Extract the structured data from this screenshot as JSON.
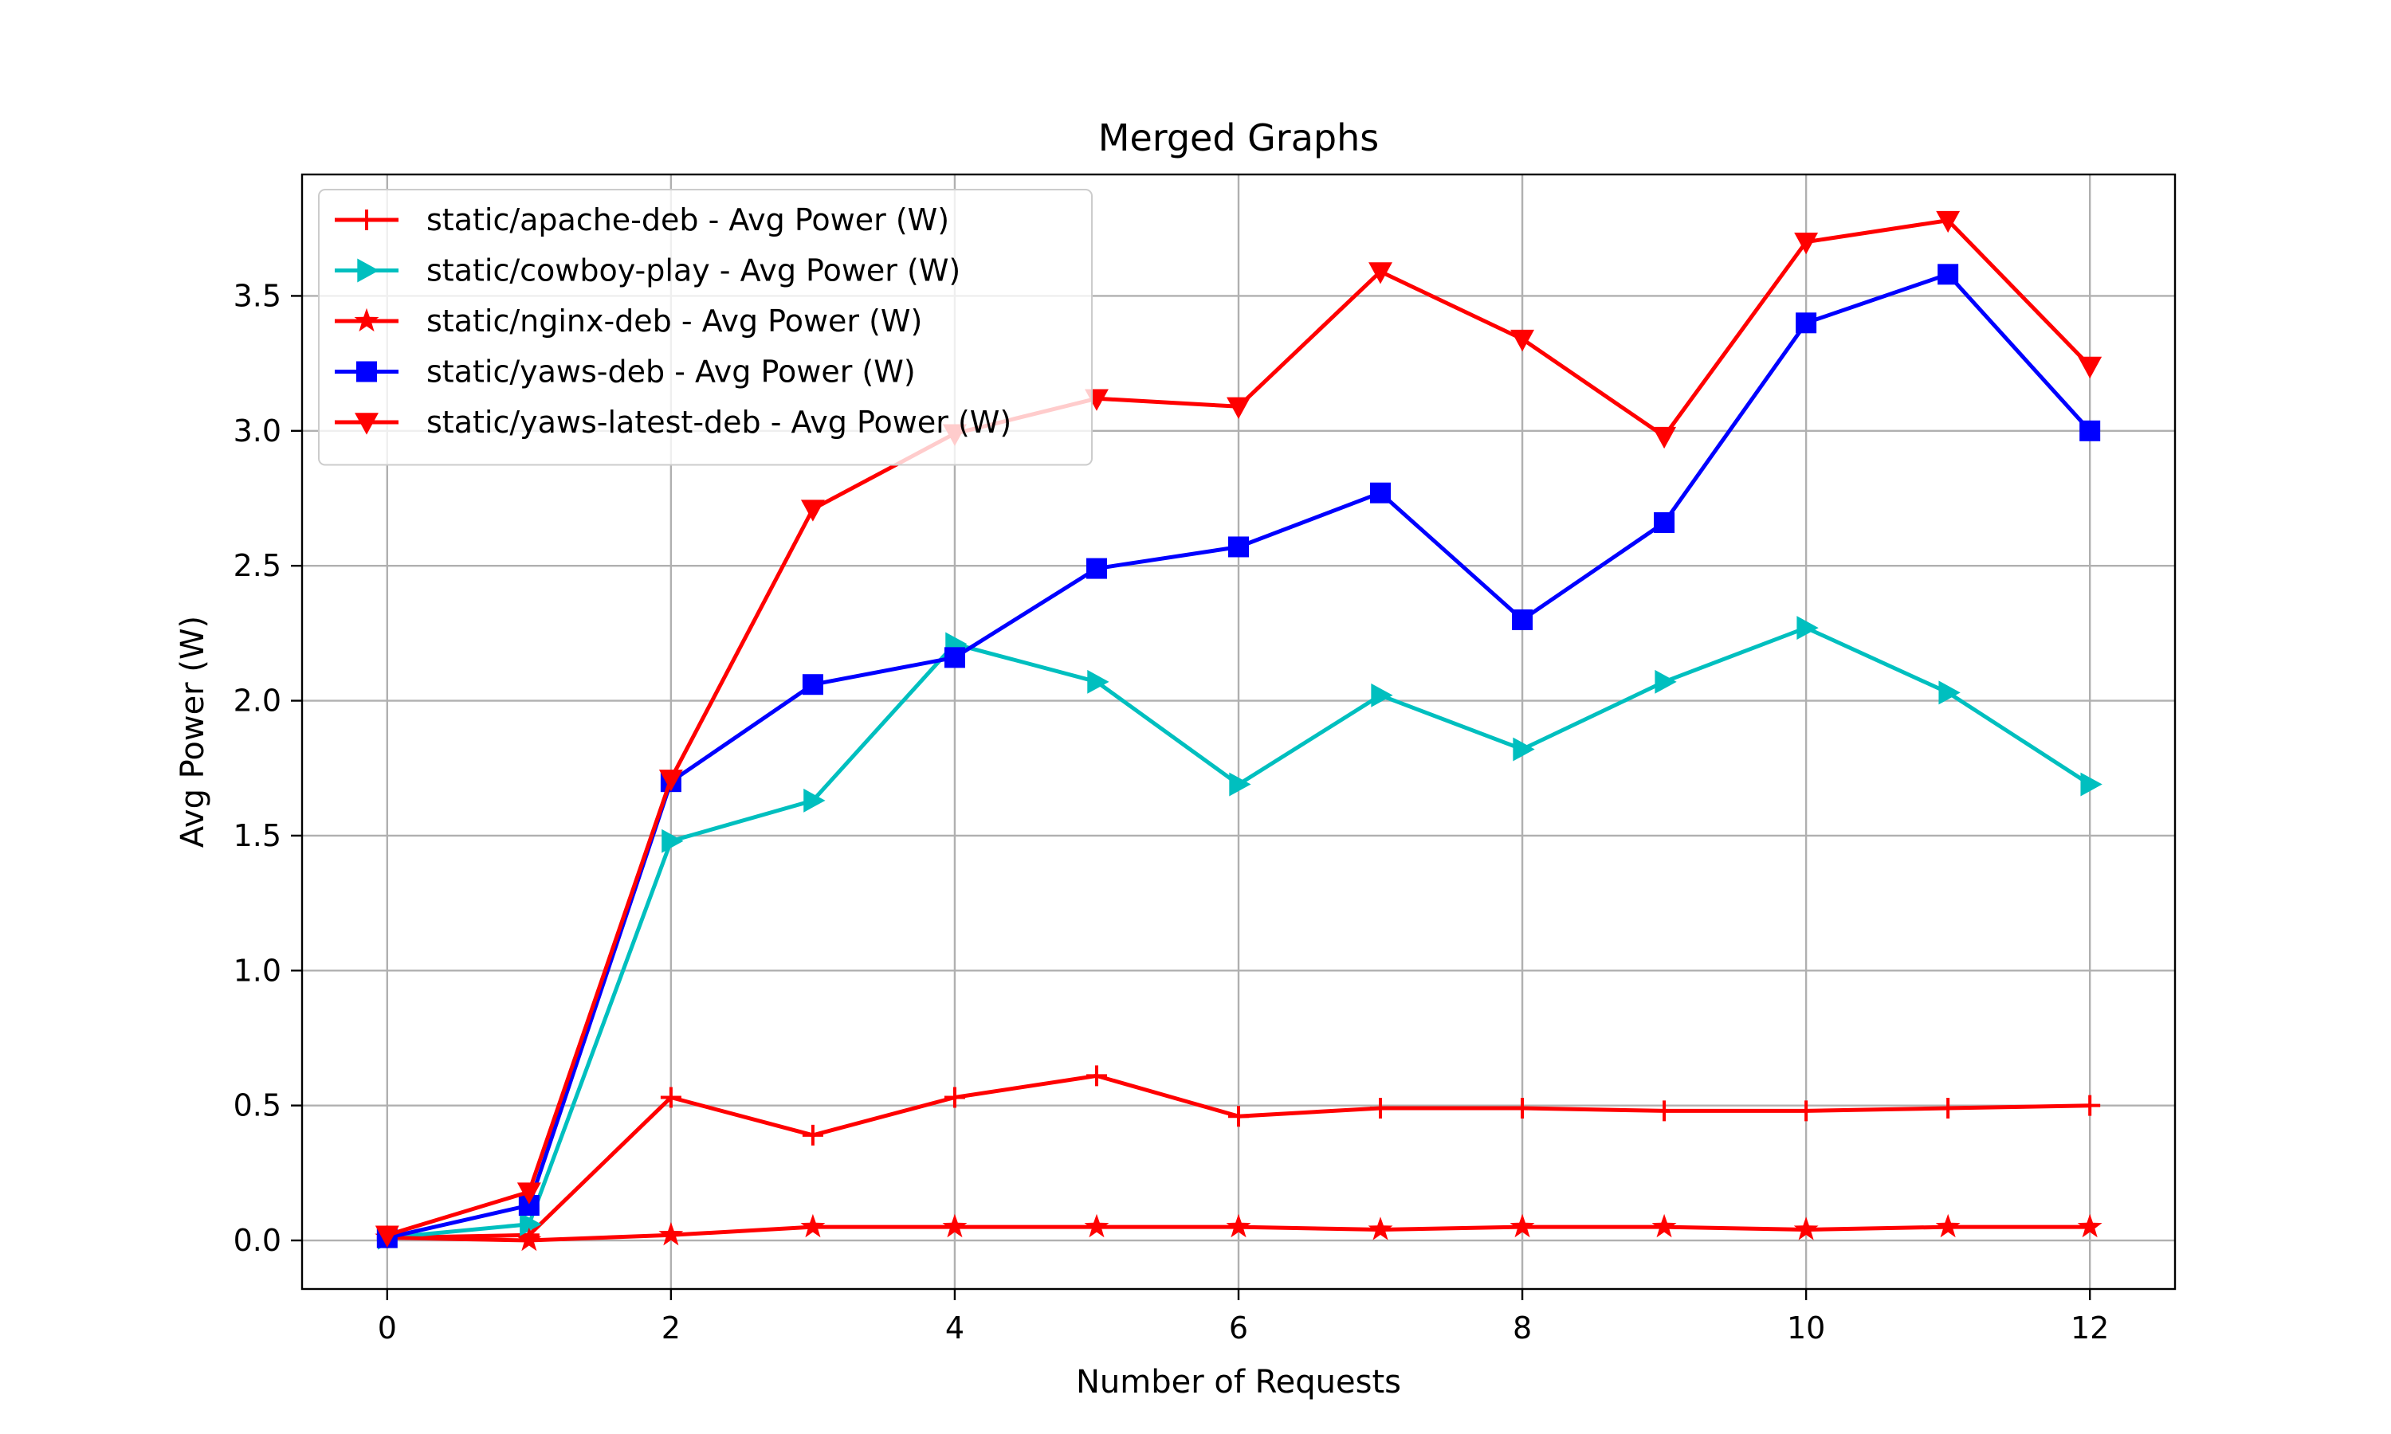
{
  "chart_data": {
    "type": "line",
    "title": "Merged Graphs",
    "xlabel": "Number of Requests",
    "ylabel": "Avg Power (W)",
    "xlim": [
      -0.6,
      12.6
    ],
    "ylim": [
      -0.18,
      3.95
    ],
    "xticks": [
      0,
      2,
      4,
      6,
      8,
      10,
      12
    ],
    "xtick_labels": [
      "0",
      "2",
      "4",
      "6",
      "8",
      "10",
      "12"
    ],
    "yticks": [
      0.0,
      0.5,
      1.0,
      1.5,
      2.0,
      2.5,
      3.0,
      3.5
    ],
    "ytick_labels": [
      "0.0",
      "0.5",
      "1.0",
      "1.5",
      "2.0",
      "2.5",
      "3.0",
      "3.5"
    ],
    "grid": true,
    "legend_position": "top-left",
    "x": [
      0,
      1,
      2,
      3,
      4,
      5,
      6,
      7,
      8,
      9,
      10,
      11,
      12
    ],
    "series": [
      {
        "name": "static/apache-deb - Avg Power (W)",
        "color": "#ff0000",
        "marker": "plus",
        "values": [
          0.01,
          0.02,
          0.53,
          0.39,
          0.53,
          0.61,
          0.46,
          0.49,
          0.49,
          0.48,
          0.48,
          0.49,
          0.5
        ]
      },
      {
        "name": "static/cowboy-play - Avg Power (W)",
        "color": "#00bfbf",
        "marker": "triangle-right",
        "values": [
          0.01,
          0.06,
          1.48,
          1.63,
          2.21,
          2.07,
          1.69,
          2.02,
          1.82,
          2.07,
          2.27,
          2.03,
          1.69
        ]
      },
      {
        "name": "static/nginx-deb - Avg Power (W)",
        "color": "#ff0000",
        "marker": "star",
        "values": [
          0.01,
          0.0,
          0.02,
          0.05,
          0.05,
          0.05,
          0.05,
          0.04,
          0.05,
          0.05,
          0.04,
          0.05,
          0.05
        ]
      },
      {
        "name": "static/yaws-deb - Avg Power (W)",
        "color": "#0000ff",
        "marker": "square",
        "values": [
          0.01,
          0.13,
          1.7,
          2.06,
          2.16,
          2.49,
          2.57,
          2.77,
          2.3,
          2.66,
          3.4,
          3.58,
          3.0
        ]
      },
      {
        "name": "static/yaws-latest-deb - Avg Power (W)",
        "color": "#ff0000",
        "marker": "triangle-down",
        "values": [
          0.02,
          0.18,
          1.71,
          2.71,
          2.99,
          3.12,
          3.09,
          3.59,
          3.34,
          2.98,
          3.7,
          3.78,
          3.24
        ]
      }
    ]
  }
}
